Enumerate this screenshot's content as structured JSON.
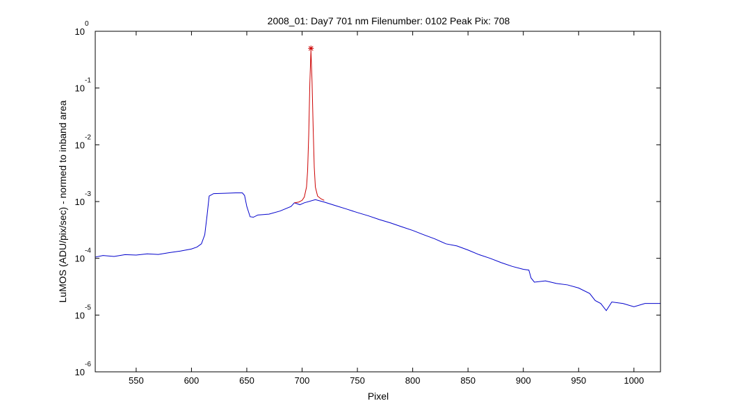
{
  "chart_data": {
    "type": "line",
    "title": "2008_01: Day7  701 nm  Filenumber: 0102 Peak Pix: 708",
    "xlabel": "Pixel",
    "ylabel": "LuMOS (ADU/pix/sec) - normed to inband area",
    "yscale": "log",
    "xlim": [
      513,
      1024
    ],
    "ylim": [
      1e-06,
      1
    ],
    "x_ticks": [
      550,
      600,
      650,
      700,
      750,
      800,
      850,
      900,
      950,
      1000
    ],
    "y_ticks": [
      {
        "base": "10",
        "exp": "-6",
        "value": 1e-06
      },
      {
        "base": "10",
        "exp": "-5",
        "value": 1e-05
      },
      {
        "base": "10",
        "exp": "-4",
        "value": 0.0001
      },
      {
        "base": "10",
        "exp": "-3",
        "value": 0.001
      },
      {
        "base": "10",
        "exp": "-2",
        "value": 0.01
      },
      {
        "base": "10",
        "exp": "-1",
        "value": 0.1
      },
      {
        "base": "10",
        "exp": "0",
        "value": 1
      }
    ],
    "grid": false,
    "legend": "none",
    "series": [
      {
        "color": "#0000cc",
        "points": [
          [
            513,
            0.000105
          ],
          [
            520,
            0.000112
          ],
          [
            530,
            0.000108
          ],
          [
            540,
            0.000116
          ],
          [
            550,
            0.000114
          ],
          [
            560,
            0.00012
          ],
          [
            570,
            0.000117
          ],
          [
            580,
            0.000126
          ],
          [
            590,
            0.000134
          ],
          [
            600,
            0.000146
          ],
          [
            605,
            0.000158
          ],
          [
            609,
            0.00018
          ],
          [
            612,
            0.00026
          ],
          [
            614,
            0.00055
          ],
          [
            616,
            0.00125
          ],
          [
            620,
            0.00138
          ],
          [
            630,
            0.0014
          ],
          [
            640,
            0.00142
          ],
          [
            646,
            0.00142
          ],
          [
            648,
            0.00128
          ],
          [
            650,
            0.00082
          ],
          [
            653,
            0.00054
          ],
          [
            656,
            0.00053
          ],
          [
            660,
            0.00058
          ],
          [
            670,
            0.0006
          ],
          [
            680,
            0.00068
          ],
          [
            690,
            0.00082
          ],
          [
            693,
            0.00095
          ],
          [
            698,
            0.00088
          ],
          [
            702,
            0.00095
          ],
          [
            712,
            0.00108
          ],
          [
            720,
            0.00098
          ],
          [
            730,
            0.00085
          ],
          [
            740,
            0.00074
          ],
          [
            750,
            0.00064
          ],
          [
            760,
            0.00056
          ],
          [
            770,
            0.00048
          ],
          [
            780,
            0.00042
          ],
          [
            790,
            0.00036
          ],
          [
            800,
            0.00031
          ],
          [
            810,
            0.00026
          ],
          [
            820,
            0.00022
          ],
          [
            830,
            0.00018
          ],
          [
            840,
            0.000165
          ],
          [
            850,
            0.00014
          ],
          [
            860,
            0.000116
          ],
          [
            870,
            0.0001
          ],
          [
            880,
            8.4e-05
          ],
          [
            890,
            7.2e-05
          ],
          [
            900,
            6.4e-05
          ],
          [
            905,
            6.2e-05
          ],
          [
            907,
            4.5e-05
          ],
          [
            910,
            3.8e-05
          ],
          [
            920,
            4e-05
          ],
          [
            930,
            3.6e-05
          ],
          [
            940,
            3.4e-05
          ],
          [
            950,
            3e-05
          ],
          [
            960,
            2.4e-05
          ],
          [
            965,
            1.8e-05
          ],
          [
            970,
            1.6e-05
          ],
          [
            975,
            1.2e-05
          ],
          [
            980,
            1.7e-05
          ],
          [
            990,
            1.6e-05
          ],
          [
            1000,
            1.4e-05
          ],
          [
            1010,
            1.6e-05
          ],
          [
            1024,
            1.6e-05
          ]
        ]
      },
      {
        "color": "#cc0000",
        "points": [
          [
            693,
            0.00095
          ],
          [
            697,
            0.00098
          ],
          [
            700,
            0.00105
          ],
          [
            702,
            0.0012
          ],
          [
            704,
            0.0018
          ],
          [
            705,
            0.0035
          ],
          [
            706,
            0.015
          ],
          [
            707,
            0.12
          ],
          [
            708,
            0.46
          ],
          [
            709,
            0.13
          ],
          [
            710,
            0.02
          ],
          [
            711,
            0.004
          ],
          [
            712,
            0.0018
          ],
          [
            714,
            0.00125
          ],
          [
            717,
            0.00112
          ],
          [
            720,
            0.00105
          ]
        ]
      }
    ],
    "peak_marker": {
      "x": 708,
      "y": 0.5,
      "color": "#cc0000"
    }
  }
}
